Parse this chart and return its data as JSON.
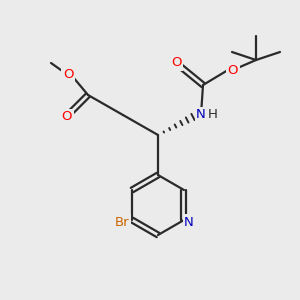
{
  "background_color": "#ebebeb",
  "bond_color": "#2a2a2a",
  "atom_colors": {
    "O": "#ff0000",
    "N": "#0000bb",
    "Br": "#cc6600",
    "C": "#2a2a2a"
  },
  "figsize": [
    3.0,
    3.0
  ],
  "dpi": 100
}
